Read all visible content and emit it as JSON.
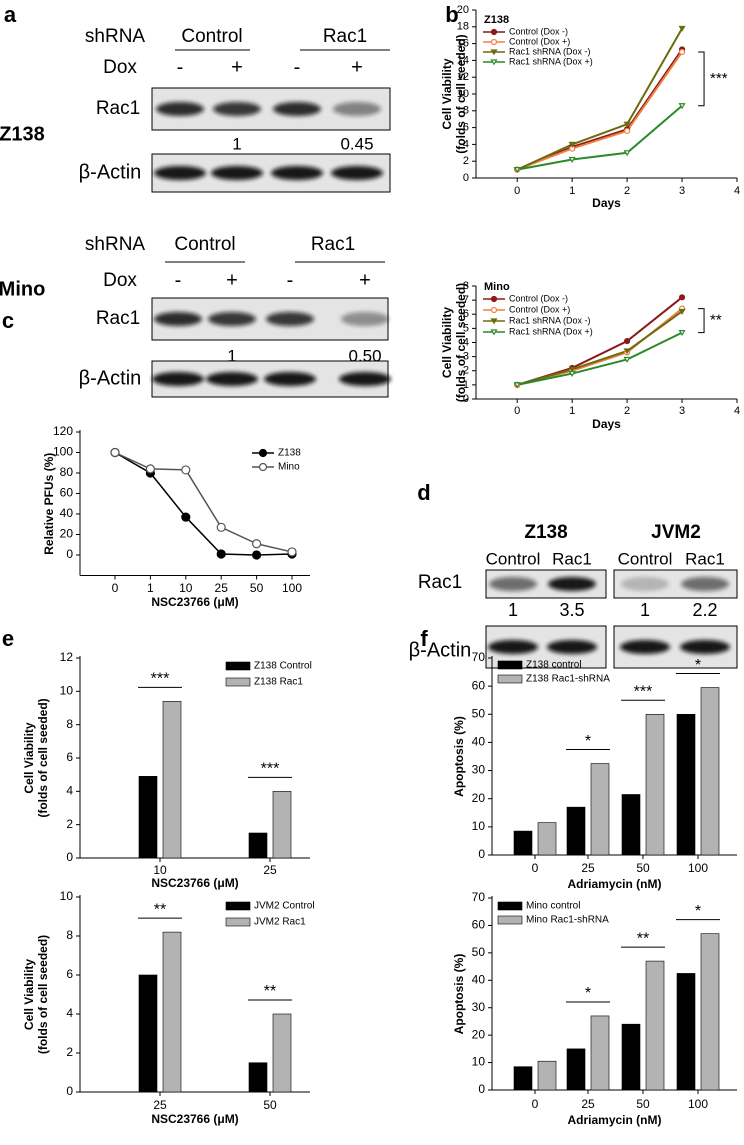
{
  "panel_labels": [
    "a",
    "b",
    "c",
    "d",
    "e",
    "f"
  ],
  "blots_a": [
    {
      "cell": "Z138",
      "shrna": "shRNA",
      "groups": [
        "Control",
        "Rac1"
      ],
      "dox": "Dox",
      "signs": [
        "-",
        "+",
        "-",
        "+"
      ],
      "target": "Rac1",
      "quant": [
        "1",
        "0.45"
      ],
      "loading": "β-Actin"
    },
    {
      "cell": "Mino",
      "shrna": "shRNA",
      "groups": [
        "Control",
        "Rac1"
      ],
      "dox": "Dox",
      "signs": [
        "-",
        "+",
        "-",
        "+"
      ],
      "target": "Rac1",
      "quant": [
        "1",
        "0.50"
      ],
      "loading": "β-Actin"
    }
  ],
  "blots_d": {
    "cells": [
      "Z138",
      "JVM2"
    ],
    "lanes": [
      [
        "Control",
        "Rac1"
      ],
      [
        "Control",
        "Rac1"
      ]
    ],
    "target": "Rac1",
    "quant": [
      [
        "1",
        "3.5"
      ],
      [
        "1",
        "2.2"
      ]
    ],
    "loading": "β-Actin"
  },
  "chart_data": [
    {
      "type": "line",
      "title": "Z138",
      "xlabel": "Days",
      "ylabel": [
        "Cell Viability",
        "(folds of cell seeded)"
      ],
      "x": [
        0,
        1,
        2,
        3
      ],
      "xlim": [
        -0.75,
        4
      ],
      "xticks": [
        0,
        1,
        2,
        3,
        4
      ],
      "ylim": [
        0,
        20
      ],
      "yticks": [
        0,
        2,
        4,
        6,
        8,
        10,
        12,
        14,
        16,
        18,
        20
      ],
      "series": [
        {
          "name": "Control (Dox -)",
          "color": "#8b1a1a",
          "marker": "circle-filled",
          "values": [
            1,
            3.7,
            5.8,
            15.3
          ]
        },
        {
          "name": "Control (Dox +)",
          "color": "#f08040",
          "marker": "circle-open",
          "values": [
            1,
            3.5,
            5.6,
            15.0
          ]
        },
        {
          "name": "Rac1 shRNA (Dox -)",
          "color": "#6b6b10",
          "marker": "triangle-filled",
          "values": [
            1,
            4.0,
            6.4,
            17.8
          ]
        },
        {
          "name": "Rac1 shRNA (Dox +)",
          "color": "#2a8a2a",
          "marker": "triangle-open",
          "values": [
            1,
            2.2,
            3.0,
            8.6
          ]
        }
      ],
      "annotation": "***"
    },
    {
      "type": "line",
      "title": "Mino",
      "xlabel": "Days",
      "ylabel": [
        "Cell Viability",
        "(folds of cell seeded)"
      ],
      "x": [
        0,
        1,
        2,
        3
      ],
      "xlim": [
        -0.75,
        4
      ],
      "xticks": [
        0,
        1,
        2,
        3,
        4
      ],
      "ylim": [
        0,
        8
      ],
      "yticks": [
        0,
        1,
        2,
        3,
        4,
        5,
        6,
        7,
        8
      ],
      "series": [
        {
          "name": "Control (Dox -)",
          "color": "#8b1a1a",
          "marker": "circle-filled",
          "values": [
            1,
            2.2,
            4.1,
            7.2
          ]
        },
        {
          "name": "Control (Dox +)",
          "color": "#f08040",
          "marker": "circle-open",
          "values": [
            1,
            2.0,
            3.3,
            6.4
          ]
        },
        {
          "name": "Rac1 shRNA (Dox -)",
          "color": "#6b6b10",
          "marker": "triangle-filled",
          "values": [
            1,
            2.1,
            3.4,
            6.2
          ]
        },
        {
          "name": "Rac1 shRNA (Dox +)",
          "color": "#2a8a2a",
          "marker": "triangle-open",
          "values": [
            1,
            1.8,
            2.8,
            4.7
          ]
        }
      ],
      "annotation": "**"
    },
    {
      "type": "line",
      "xlabel": "NSC23766 (μM)",
      "ylabel": [
        "Relative PFUs (%)"
      ],
      "categories": [
        "0",
        "1",
        "10",
        "25",
        "50",
        "100"
      ],
      "ylim": [
        -20,
        120
      ],
      "yticks": [
        0,
        20,
        40,
        60,
        80,
        100,
        120
      ],
      "series": [
        {
          "name": "Z138",
          "color": "#000000",
          "marker": "circle-filled",
          "values": [
            100,
            80,
            37,
            1,
            0,
            1
          ]
        },
        {
          "name": "Mino",
          "color": "#555555",
          "marker": "circle-open",
          "values": [
            100,
            84,
            83,
            27,
            11,
            3
          ]
        }
      ]
    },
    {
      "type": "bar",
      "xlabel": "NSC23766 (μM)",
      "ylabel": [
        "Cell Viability",
        "(folds of cell seeded)"
      ],
      "categories": [
        "10",
        "25"
      ],
      "ylim": [
        0,
        12
      ],
      "yticks": [
        0,
        2,
        4,
        6,
        8,
        10,
        12
      ],
      "series": [
        {
          "name": "Z138 Control",
          "color": "#000000",
          "values": [
            4.9,
            1.5
          ]
        },
        {
          "name": "Z138 Rac1",
          "color": "#b3b3b3",
          "values": [
            9.4,
            4.0
          ]
        }
      ],
      "annotations": [
        "***",
        "***"
      ]
    },
    {
      "type": "bar",
      "xlabel": "NSC23766 (μM)",
      "ylabel": [
        "Cell Viability",
        "(folds of cell seeded)"
      ],
      "categories": [
        "25",
        "50"
      ],
      "ylim": [
        0,
        10
      ],
      "yticks": [
        0,
        2,
        4,
        6,
        8,
        10
      ],
      "series": [
        {
          "name": "JVM2 Control",
          "color": "#000000",
          "values": [
            6.0,
            1.5
          ]
        },
        {
          "name": "JVM2 Rac1",
          "color": "#b3b3b3",
          "values": [
            8.2,
            4.0
          ]
        }
      ],
      "annotations": [
        "**",
        "**"
      ]
    },
    {
      "type": "bar",
      "xlabel": "Adriamycin (nM)",
      "ylabel": [
        "Apoptosis (%)"
      ],
      "categories": [
        "0",
        "25",
        "50",
        "100"
      ],
      "ylim": [
        0,
        70
      ],
      "yticks": [
        0,
        10,
        20,
        30,
        40,
        50,
        60,
        70
      ],
      "series": [
        {
          "name": "Z138 control",
          "color": "#000000",
          "values": [
            8.5,
            17,
            21.5,
            50
          ]
        },
        {
          "name": "Z138 Rac1-shRNA",
          "color": "#b3b3b3",
          "values": [
            11.5,
            32.5,
            50,
            59.5
          ]
        }
      ],
      "annotations": [
        null,
        "*",
        "***",
        "*"
      ]
    },
    {
      "type": "bar",
      "xlabel": "Adriamycin (nM)",
      "ylabel": [
        "Apoptosis (%)"
      ],
      "categories": [
        "0",
        "25",
        "50",
        "100"
      ],
      "ylim": [
        0,
        70
      ],
      "yticks": [
        0,
        10,
        20,
        30,
        40,
        50,
        60,
        70
      ],
      "series": [
        {
          "name": "Mino control",
          "color": "#000000",
          "values": [
            8.5,
            15,
            24,
            42.5
          ]
        },
        {
          "name": "Mino Rac1-shRNA",
          "color": "#b3b3b3",
          "values": [
            10.5,
            27,
            47,
            57
          ]
        }
      ],
      "annotations": [
        null,
        "*",
        "**",
        "*"
      ]
    }
  ]
}
